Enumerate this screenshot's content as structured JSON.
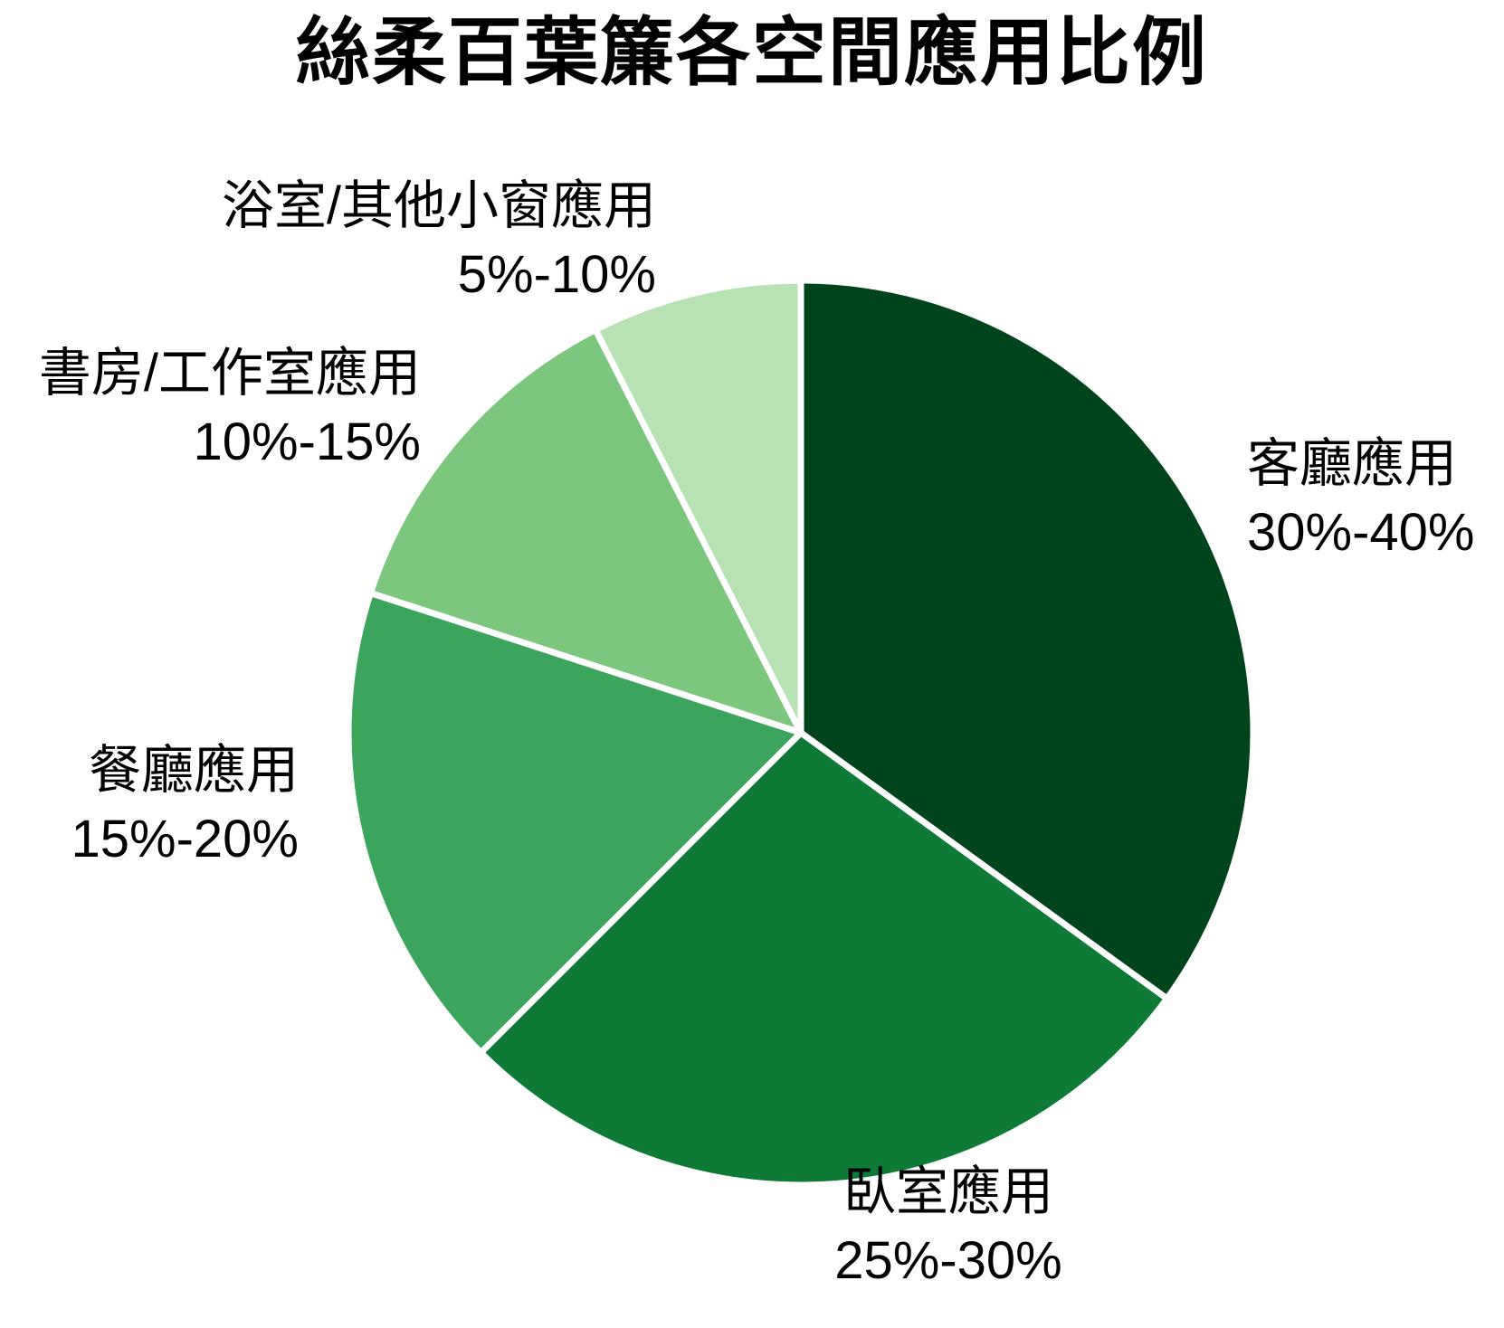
{
  "chart_data": {
    "type": "pie",
    "title": "絲柔百葉簾各空間應用比例",
    "legend_position": "none",
    "start_angle": "12-oclock-clockwise",
    "separator_color": "#ffffff",
    "slices": [
      {
        "label": "客廳應用",
        "value_label": "30%-40%",
        "value_pct_mid": 35,
        "color": "#00441b"
      },
      {
        "label": "臥室應用",
        "value_label": "25%-30%",
        "value_pct_mid": 27.5,
        "color": "#0d7a36"
      },
      {
        "label": "餐廳應用",
        "value_label": "15%-20%",
        "value_pct_mid": 17.5,
        "color": "#3ba55c"
      },
      {
        "label": "書房/工作室應用",
        "value_label": "10%-15%",
        "value_pct_mid": 12.5,
        "color": "#7dc67e"
      },
      {
        "label": "浴室/其他小窗應用",
        "value_label": "5%-10%",
        "value_pct_mid": 7.5,
        "color": "#b7e3b4"
      }
    ]
  }
}
